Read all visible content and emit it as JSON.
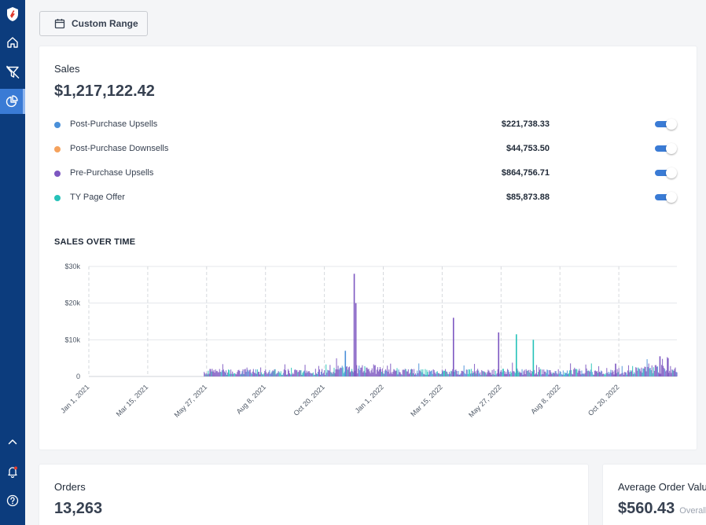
{
  "toolbar": {
    "custom_range_label": "Custom Range"
  },
  "sidebar": {
    "items": [
      {
        "name": "logo",
        "icon": "brand-logo-icon"
      },
      {
        "name": "home",
        "icon": "home-icon"
      },
      {
        "name": "funnels",
        "icon": "funnel-icon"
      },
      {
        "name": "analytics",
        "icon": "pie-chart-icon",
        "active": true
      },
      {
        "name": "collapse",
        "icon": "chevron-up-icon"
      },
      {
        "name": "notifications",
        "icon": "bell-icon"
      },
      {
        "name": "help",
        "icon": "help-circle-icon"
      }
    ]
  },
  "sales": {
    "title": "Sales",
    "total": "$1,217,122.42",
    "series": [
      {
        "label": "Post-Purchase Upsells",
        "value": "$221,738.33",
        "color": "#4a90d9"
      },
      {
        "label": "Post-Purchase Downsells",
        "value": "$44,753.50",
        "color": "#f5a25d"
      },
      {
        "label": "Pre-Purchase Upsells",
        "value": "$864,756.71",
        "color": "#7d57c1"
      },
      {
        "label": "TY Page Offer",
        "value": "$85,873.88",
        "color": "#26c2b9"
      }
    ],
    "section_title": "SALES OVER TIME"
  },
  "chart_data": {
    "type": "bar",
    "title": "SALES OVER TIME",
    "xlabel": "",
    "ylabel": "",
    "ylim": [
      0,
      30000
    ],
    "yticks": [
      "0",
      "$10k",
      "$20k",
      "$30k"
    ],
    "ytick_values": [
      0,
      10000,
      20000,
      30000
    ],
    "x_range": [
      "Jan 1, 2021",
      "Dec 31, 2022"
    ],
    "xticks": [
      "Jan 1, 2021",
      "Mar 15, 2021",
      "May 27, 2021",
      "Aug 8, 2021",
      "Oct 20, 2021",
      "Jan 1, 2022",
      "Mar 15, 2022",
      "May 27, 2022",
      "Aug 8, 2022",
      "Oct 20, 2022"
    ],
    "series_names": [
      "Post-Purchase Upsells",
      "Post-Purchase Downsells",
      "Pre-Purchase Upsells",
      "TY Page Offer"
    ],
    "approx_daily_baseline": 1500,
    "notable_peaks": [
      {
        "date": "Nov 26, 2021",
        "value": 28000,
        "series": "Pre-Purchase Upsells"
      },
      {
        "date": "Nov 28, 2021",
        "value": 20000,
        "series": "Pre-Purchase Upsells"
      },
      {
        "date": "Nov 15, 2021",
        "value": 7000,
        "series": "Post-Purchase Upsells"
      },
      {
        "date": "Mar 29, 2022",
        "value": 16000,
        "series": "Pre-Purchase Upsells"
      },
      {
        "date": "May 24, 2022",
        "value": 12000,
        "series": "Pre-Purchase Upsells"
      },
      {
        "date": "Jun 15, 2022",
        "value": 11500,
        "series": "TY Page Offer"
      },
      {
        "date": "Jul 6, 2022",
        "value": 10000,
        "series": "TY Page Offer"
      },
      {
        "date": "Oct 16, 2022",
        "value": 3500,
        "series": "Pre-Purchase Upsells"
      },
      {
        "date": "Dec 10, 2022",
        "value": 5500,
        "series": "Pre-Purchase Upsells"
      },
      {
        "date": "Dec 20, 2022",
        "value": 5000,
        "series": "Pre-Purchase Upsells"
      }
    ]
  },
  "orders": {
    "title": "Orders",
    "total": "13,263"
  },
  "aov": {
    "title": "Average Order Value",
    "total": "$560.43",
    "subtitle": "Overall"
  }
}
